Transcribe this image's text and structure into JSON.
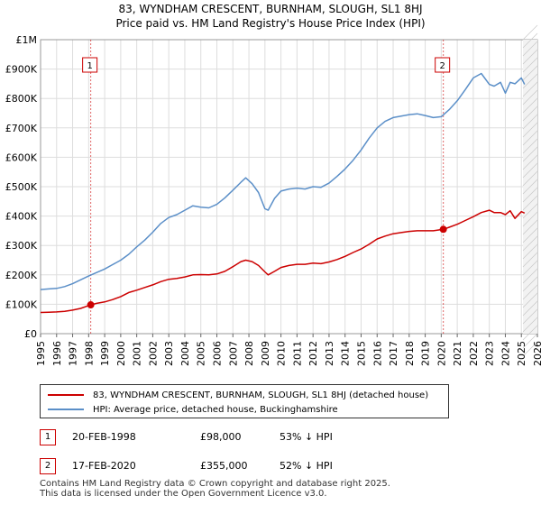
{
  "chart_data": {
    "type": "line",
    "title": "83, WYNDHAM CRESCENT, BURNHAM, SLOUGH, SL1 8HJ",
    "subtitle": "Price paid vs. HM Land Registry's House Price Index (HPI)",
    "xlim": [
      1995,
      2026
    ],
    "ylim": [
      0,
      1000000
    ],
    "x_ticks": [
      "1995",
      "1996",
      "1997",
      "1998",
      "1999",
      "2000",
      "2001",
      "2002",
      "2003",
      "2004",
      "2005",
      "2006",
      "2007",
      "2008",
      "2009",
      "2010",
      "2011",
      "2012",
      "2013",
      "2014",
      "2015",
      "2016",
      "2017",
      "2018",
      "2019",
      "2020",
      "2021",
      "2022",
      "2023",
      "2024",
      "2025",
      "2026"
    ],
    "y_ticks": [
      {
        "value": 0,
        "label": "£0"
      },
      {
        "value": 100000,
        "label": "£100K"
      },
      {
        "value": 200000,
        "label": "£200K"
      },
      {
        "value": 300000,
        "label": "£300K"
      },
      {
        "value": 400000,
        "label": "£400K"
      },
      {
        "value": 500000,
        "label": "£500K"
      },
      {
        "value": 600000,
        "label": "£600K"
      },
      {
        "value": 700000,
        "label": "£700K"
      },
      {
        "value": 800000,
        "label": "£800K"
      },
      {
        "value": 900000,
        "label": "£900K"
      },
      {
        "value": 1000000,
        "label": "£1M"
      }
    ],
    "grid": true,
    "future_shade_from": 2025.1,
    "series": [
      {
        "name": "83, WYNDHAM CRESCENT, BURNHAM, SLOUGH, SL1 8HJ (detached house)",
        "color": "#cc0000",
        "x": [
          1995.0,
          1995.5,
          1996.0,
          1996.5,
          1997.0,
          1997.5,
          1998.13,
          1998.5,
          1999.0,
          1999.5,
          2000.0,
          2000.5,
          2001.0,
          2001.5,
          2002.0,
          2002.5,
          2003.0,
          2003.5,
          2004.0,
          2004.5,
          2005.0,
          2005.5,
          2006.0,
          2006.5,
          2007.0,
          2007.5,
          2007.8,
          2008.2,
          2008.6,
          2009.0,
          2009.2,
          2009.6,
          2010.0,
          2010.5,
          2011.0,
          2011.5,
          2012.0,
          2012.5,
          2013.0,
          2013.5,
          2014.0,
          2014.5,
          2015.0,
          2015.5,
          2016.0,
          2016.5,
          2017.0,
          2017.5,
          2018.0,
          2018.5,
          2019.0,
          2019.5,
          2020.13,
          2020.5,
          2021.0,
          2021.5,
          2022.0,
          2022.5,
          2023.0,
          2023.3,
          2023.7,
          2024.0,
          2024.3,
          2024.6,
          2025.0,
          2025.2
        ],
        "values": [
          72000,
          73000,
          74000,
          76000,
          80000,
          86000,
          98000,
          103000,
          108000,
          116000,
          126000,
          140000,
          148000,
          157000,
          166000,
          177000,
          185000,
          188000,
          193000,
          200000,
          201000,
          200000,
          203000,
          212000,
          228000,
          245000,
          250000,
          245000,
          232000,
          210000,
          200000,
          212000,
          225000,
          232000,
          236000,
          236000,
          240000,
          238000,
          244000,
          252000,
          263000,
          276000,
          288000,
          304000,
          322000,
          332000,
          340000,
          344000,
          348000,
          350000,
          350000,
          350000,
          355000,
          362000,
          372000,
          385000,
          398000,
          412000,
          420000,
          412000,
          412000,
          405000,
          418000,
          392000,
          415000,
          410000
        ]
      },
      {
        "name": "HPI: Average price, detached house, Buckinghamshire",
        "color": "#5b8fc8",
        "x": [
          1995.0,
          1995.5,
          1996.0,
          1996.5,
          1997.0,
          1997.5,
          1998.0,
          1998.5,
          1999.0,
          1999.5,
          2000.0,
          2000.5,
          2001.0,
          2001.5,
          2002.0,
          2002.5,
          2003.0,
          2003.5,
          2004.0,
          2004.5,
          2005.0,
          2005.5,
          2006.0,
          2006.5,
          2007.0,
          2007.5,
          2007.8,
          2008.2,
          2008.6,
          2009.0,
          2009.2,
          2009.6,
          2010.0,
          2010.5,
          2011.0,
          2011.5,
          2012.0,
          2012.5,
          2013.0,
          2013.5,
          2014.0,
          2014.5,
          2015.0,
          2015.5,
          2016.0,
          2016.5,
          2017.0,
          2017.5,
          2018.0,
          2018.5,
          2019.0,
          2019.5,
          2020.0,
          2020.5,
          2021.0,
          2021.5,
          2022.0,
          2022.5,
          2023.0,
          2023.3,
          2023.7,
          2024.0,
          2024.3,
          2024.6,
          2025.0,
          2025.2
        ],
        "values": [
          150000,
          152000,
          154000,
          160000,
          170000,
          183000,
          196000,
          208000,
          220000,
          235000,
          250000,
          270000,
          295000,
          318000,
          345000,
          375000,
          395000,
          405000,
          420000,
          435000,
          430000,
          428000,
          440000,
          462000,
          488000,
          515000,
          530000,
          510000,
          480000,
          425000,
          420000,
          460000,
          485000,
          492000,
          495000,
          492000,
          500000,
          498000,
          512000,
          535000,
          560000,
          590000,
          625000,
          665000,
          700000,
          722000,
          735000,
          740000,
          745000,
          748000,
          742000,
          735000,
          738000,
          762000,
          792000,
          830000,
          870000,
          885000,
          848000,
          842000,
          855000,
          818000,
          855000,
          850000,
          870000,
          848000
        ]
      }
    ],
    "annotations": [
      {
        "label": "1",
        "x": 1998.13,
        "value": 98000,
        "color": "#cc0000"
      },
      {
        "label": "2",
        "x": 2020.13,
        "value": 355000,
        "color": "#cc0000"
      }
    ],
    "legend_position": "below"
  },
  "sales": [
    {
      "badge": "1",
      "date": "20-FEB-1998",
      "price": "£98,000",
      "hpi": "53% ↓ HPI"
    },
    {
      "badge": "2",
      "date": "17-FEB-2020",
      "price": "£355,000",
      "hpi": "52% ↓ HPI"
    }
  ],
  "footer": {
    "line1": "Contains HM Land Registry data © Crown copyright and database right 2025.",
    "line2": "This data is licensed under the Open Government Licence v3.0."
  }
}
